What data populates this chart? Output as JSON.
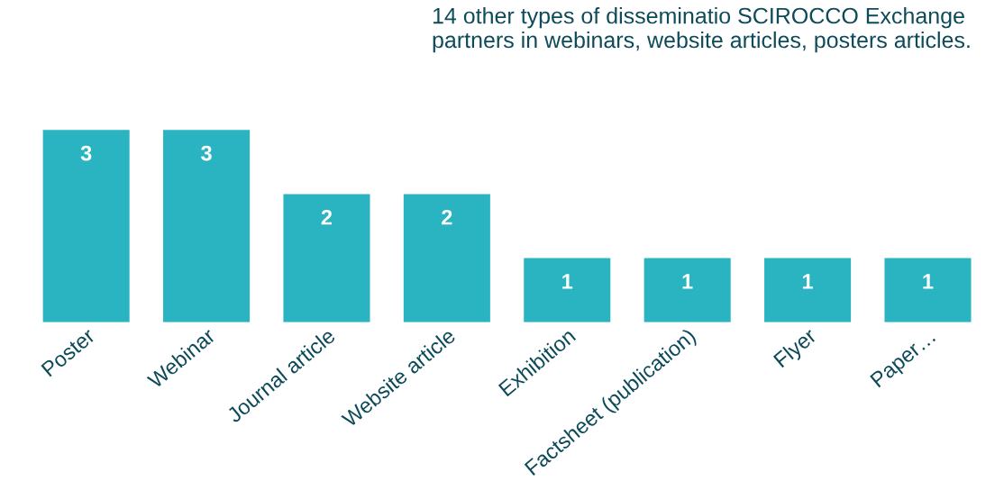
{
  "chart_data": {
    "type": "bar",
    "categories": [
      "Poster",
      "Webinar",
      "Journal article",
      "Website article",
      "Exhibition",
      "Factsheet (publication)",
      "Flyer",
      "Paper…"
    ],
    "values": [
      3,
      3,
      2,
      2,
      1,
      1,
      1,
      1
    ],
    "color": "#2ab4c2",
    "data_labels": true,
    "annotations": [
      "14 other types of disseminatio SCIROCCO Exchange partners in webinars, website articles, posters articles."
    ]
  }
}
